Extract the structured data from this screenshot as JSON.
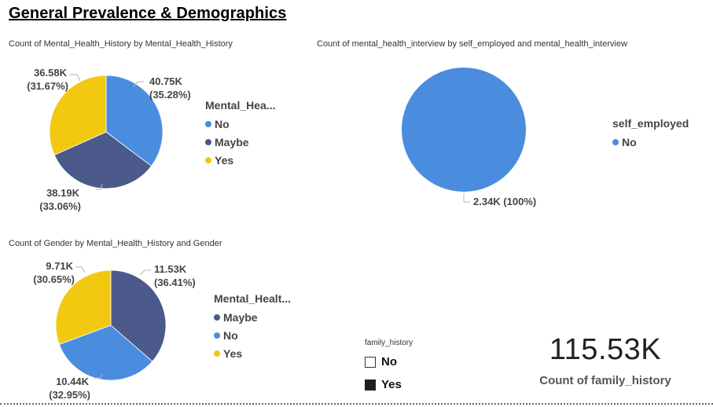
{
  "page": {
    "title": "General Prevalence & Demographics"
  },
  "colors": {
    "blue": "#4a8ddf",
    "navy": "#4b5a8a",
    "yellow": "#f2c811"
  },
  "chart_data": [
    {
      "id": "mh_history",
      "type": "pie",
      "title": "Count of Mental_Health_History by Mental_Health_History",
      "legend_title": "Mental_Hea...",
      "legend_placement": "right",
      "slices": [
        {
          "name": "No",
          "value": 40750,
          "label": "40.75K",
          "pct": "(35.28%)",
          "color": "#4a8ddf"
        },
        {
          "name": "Maybe",
          "value": 38190,
          "label": "38.19K",
          "pct": "(33.06%)",
          "color": "#4b5a8a"
        },
        {
          "name": "Yes",
          "value": 36580,
          "label": "36.58K",
          "pct": "(31.67%)",
          "color": "#f2c811"
        }
      ]
    },
    {
      "id": "interview",
      "type": "pie",
      "title": "Count of mental_health_interview by self_employed and mental_health_interview",
      "legend_title": "self_employed",
      "legend_placement": "right",
      "slices": [
        {
          "name": "No",
          "value": 2340,
          "label": "2.34K (100%)",
          "pct": "",
          "color": "#4a8ddf"
        }
      ]
    },
    {
      "id": "gender",
      "type": "pie",
      "title": "Count of Gender by Mental_Health_History and Gender",
      "legend_title": "Mental_Healt...",
      "legend_placement": "right",
      "slices": [
        {
          "name": "Maybe",
          "value": 11530,
          "label": "11.53K",
          "pct": "(36.41%)",
          "color": "#4b5a8a"
        },
        {
          "name": "No",
          "value": 10440,
          "label": "10.44K",
          "pct": "(32.95%)",
          "color": "#4a8ddf"
        },
        {
          "name": "Yes",
          "value": 9710,
          "label": "9.71K",
          "pct": "(30.65%)",
          "color": "#f2c811"
        }
      ]
    }
  ],
  "slicer": {
    "title": "family_history",
    "items": [
      {
        "label": "No",
        "checked": false
      },
      {
        "label": "Yes",
        "checked": true
      }
    ]
  },
  "kpi": {
    "value": "115.53K",
    "label": "Count of family_history"
  }
}
